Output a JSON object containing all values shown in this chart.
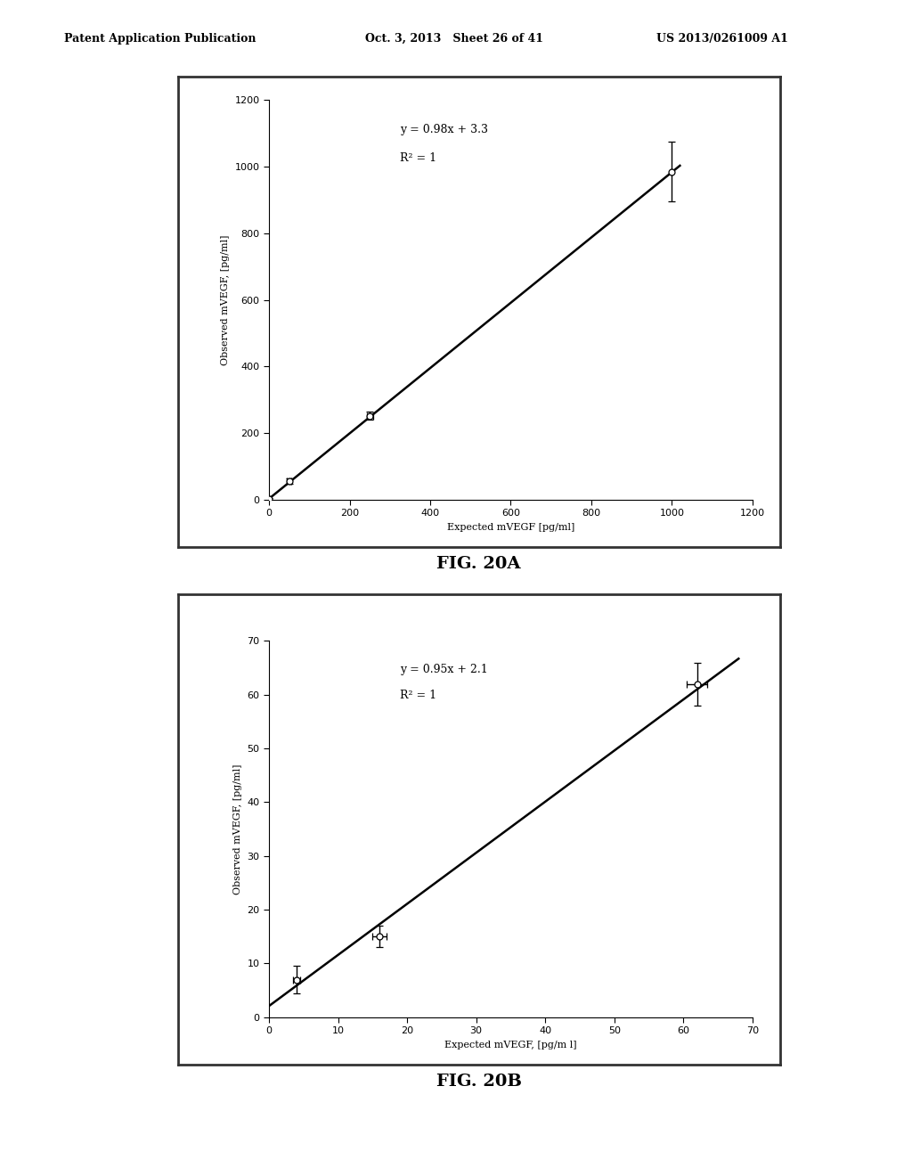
{
  "header_left": "Patent Application Publication",
  "header_mid": "Oct. 3, 2013   Sheet 26 of 41",
  "header_right": "US 2013/0261009 A1",
  "plot_a": {
    "fig_label": "FIG. 20A",
    "xlabel": "Expected mVEGF [pg/ml]",
    "ylabel": "Observed mVEGF, [pg/ml]",
    "equation": "y = 0.98x + 3.3",
    "r2": "R² = 1",
    "xlim": [
      0,
      1200
    ],
    "ylim": [
      0,
      1200
    ],
    "xticks": [
      0,
      200,
      400,
      600,
      800,
      1000,
      1200
    ],
    "yticks": [
      0,
      200,
      400,
      600,
      800,
      1000,
      1200
    ],
    "data_x": [
      0,
      50,
      250,
      1000
    ],
    "data_y": [
      3,
      55,
      252,
      985
    ],
    "xerr": [
      0,
      5,
      8,
      0
    ],
    "yerr": [
      3,
      8,
      12,
      90
    ],
    "slope": 0.98,
    "intercept": 3.3,
    "line_x_start": 0,
    "line_x_end": 1020
  },
  "plot_b": {
    "fig_label": "FIG. 20B",
    "xlabel": "Expected mVEGF, [pg/m l]",
    "ylabel": "Observed mVEGF, [pg/ml]",
    "equation": "y = 0.95x + 2.1",
    "r2": "R² = 1",
    "xlim": [
      0,
      70
    ],
    "ylim": [
      0,
      70
    ],
    "xticks": [
      0,
      10,
      20,
      30,
      40,
      50,
      60,
      70
    ],
    "yticks": [
      0,
      10,
      20,
      30,
      40,
      50,
      60,
      70
    ],
    "data_x": [
      4,
      16,
      62
    ],
    "data_y": [
      7,
      15,
      62
    ],
    "xerr": [
      0.5,
      1,
      1.5
    ],
    "yerr": [
      2.5,
      2,
      4
    ],
    "slope": 0.95,
    "intercept": 2.1,
    "line_x_start": 0,
    "line_x_end": 68
  },
  "bg_color": "#ffffff",
  "plot_bg": "#ffffff",
  "line_color": "#000000",
  "marker_facecolor": "#ffffff",
  "marker_edgecolor": "#000000",
  "errorbar_color": "#000000",
  "text_color": "#000000",
  "outer_box_color": "#555555",
  "annotation_fontsize": 9,
  "axis_label_fontsize": 8,
  "tick_fontsize": 8,
  "header_fontsize": 9,
  "fig_label_fontsize": 14
}
